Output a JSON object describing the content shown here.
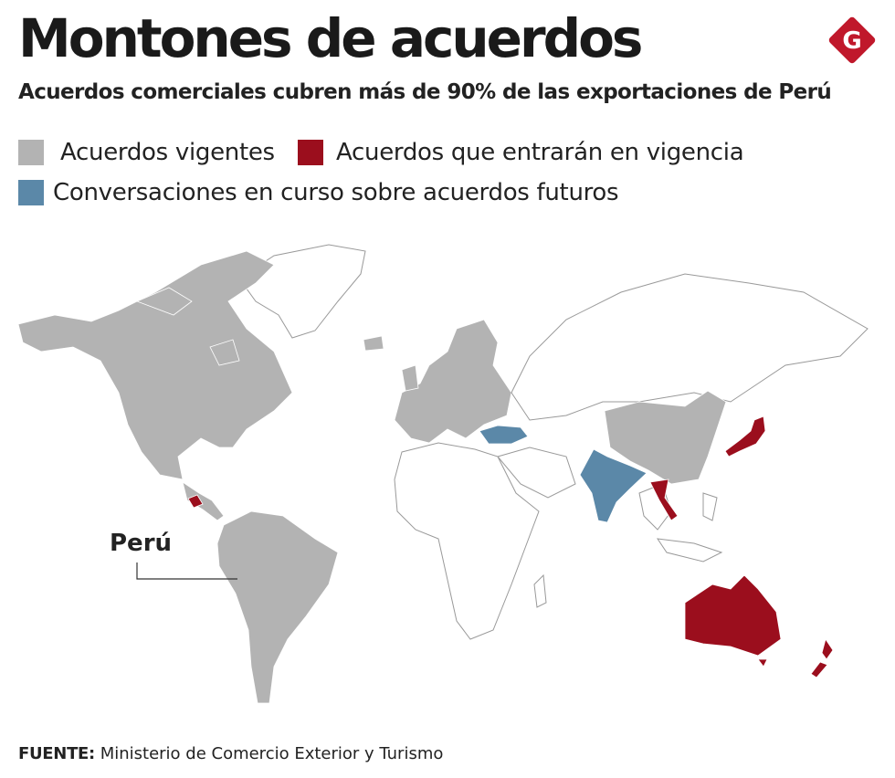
{
  "header": {
    "title": "Montones de acuerdos",
    "subtitle": "Acuerdos comerciales cubren más de 90% de las exportaciones de Perú",
    "logo": "G"
  },
  "legend": [
    {
      "label": "Acuerdos vigentes",
      "color": "#b3b3b3"
    },
    {
      "label": "Acuerdos que entrarán en vigencia",
      "color": "#9b0e1d"
    },
    {
      "label": "Conversaciones en curso sobre acuerdos futuros",
      "color": "#5b88a8"
    }
  ],
  "map": {
    "label": "Perú"
  },
  "footer": {
    "source_label": "FUENTE:",
    "source": "Ministerio de Comercio Exterior y Turismo"
  }
}
